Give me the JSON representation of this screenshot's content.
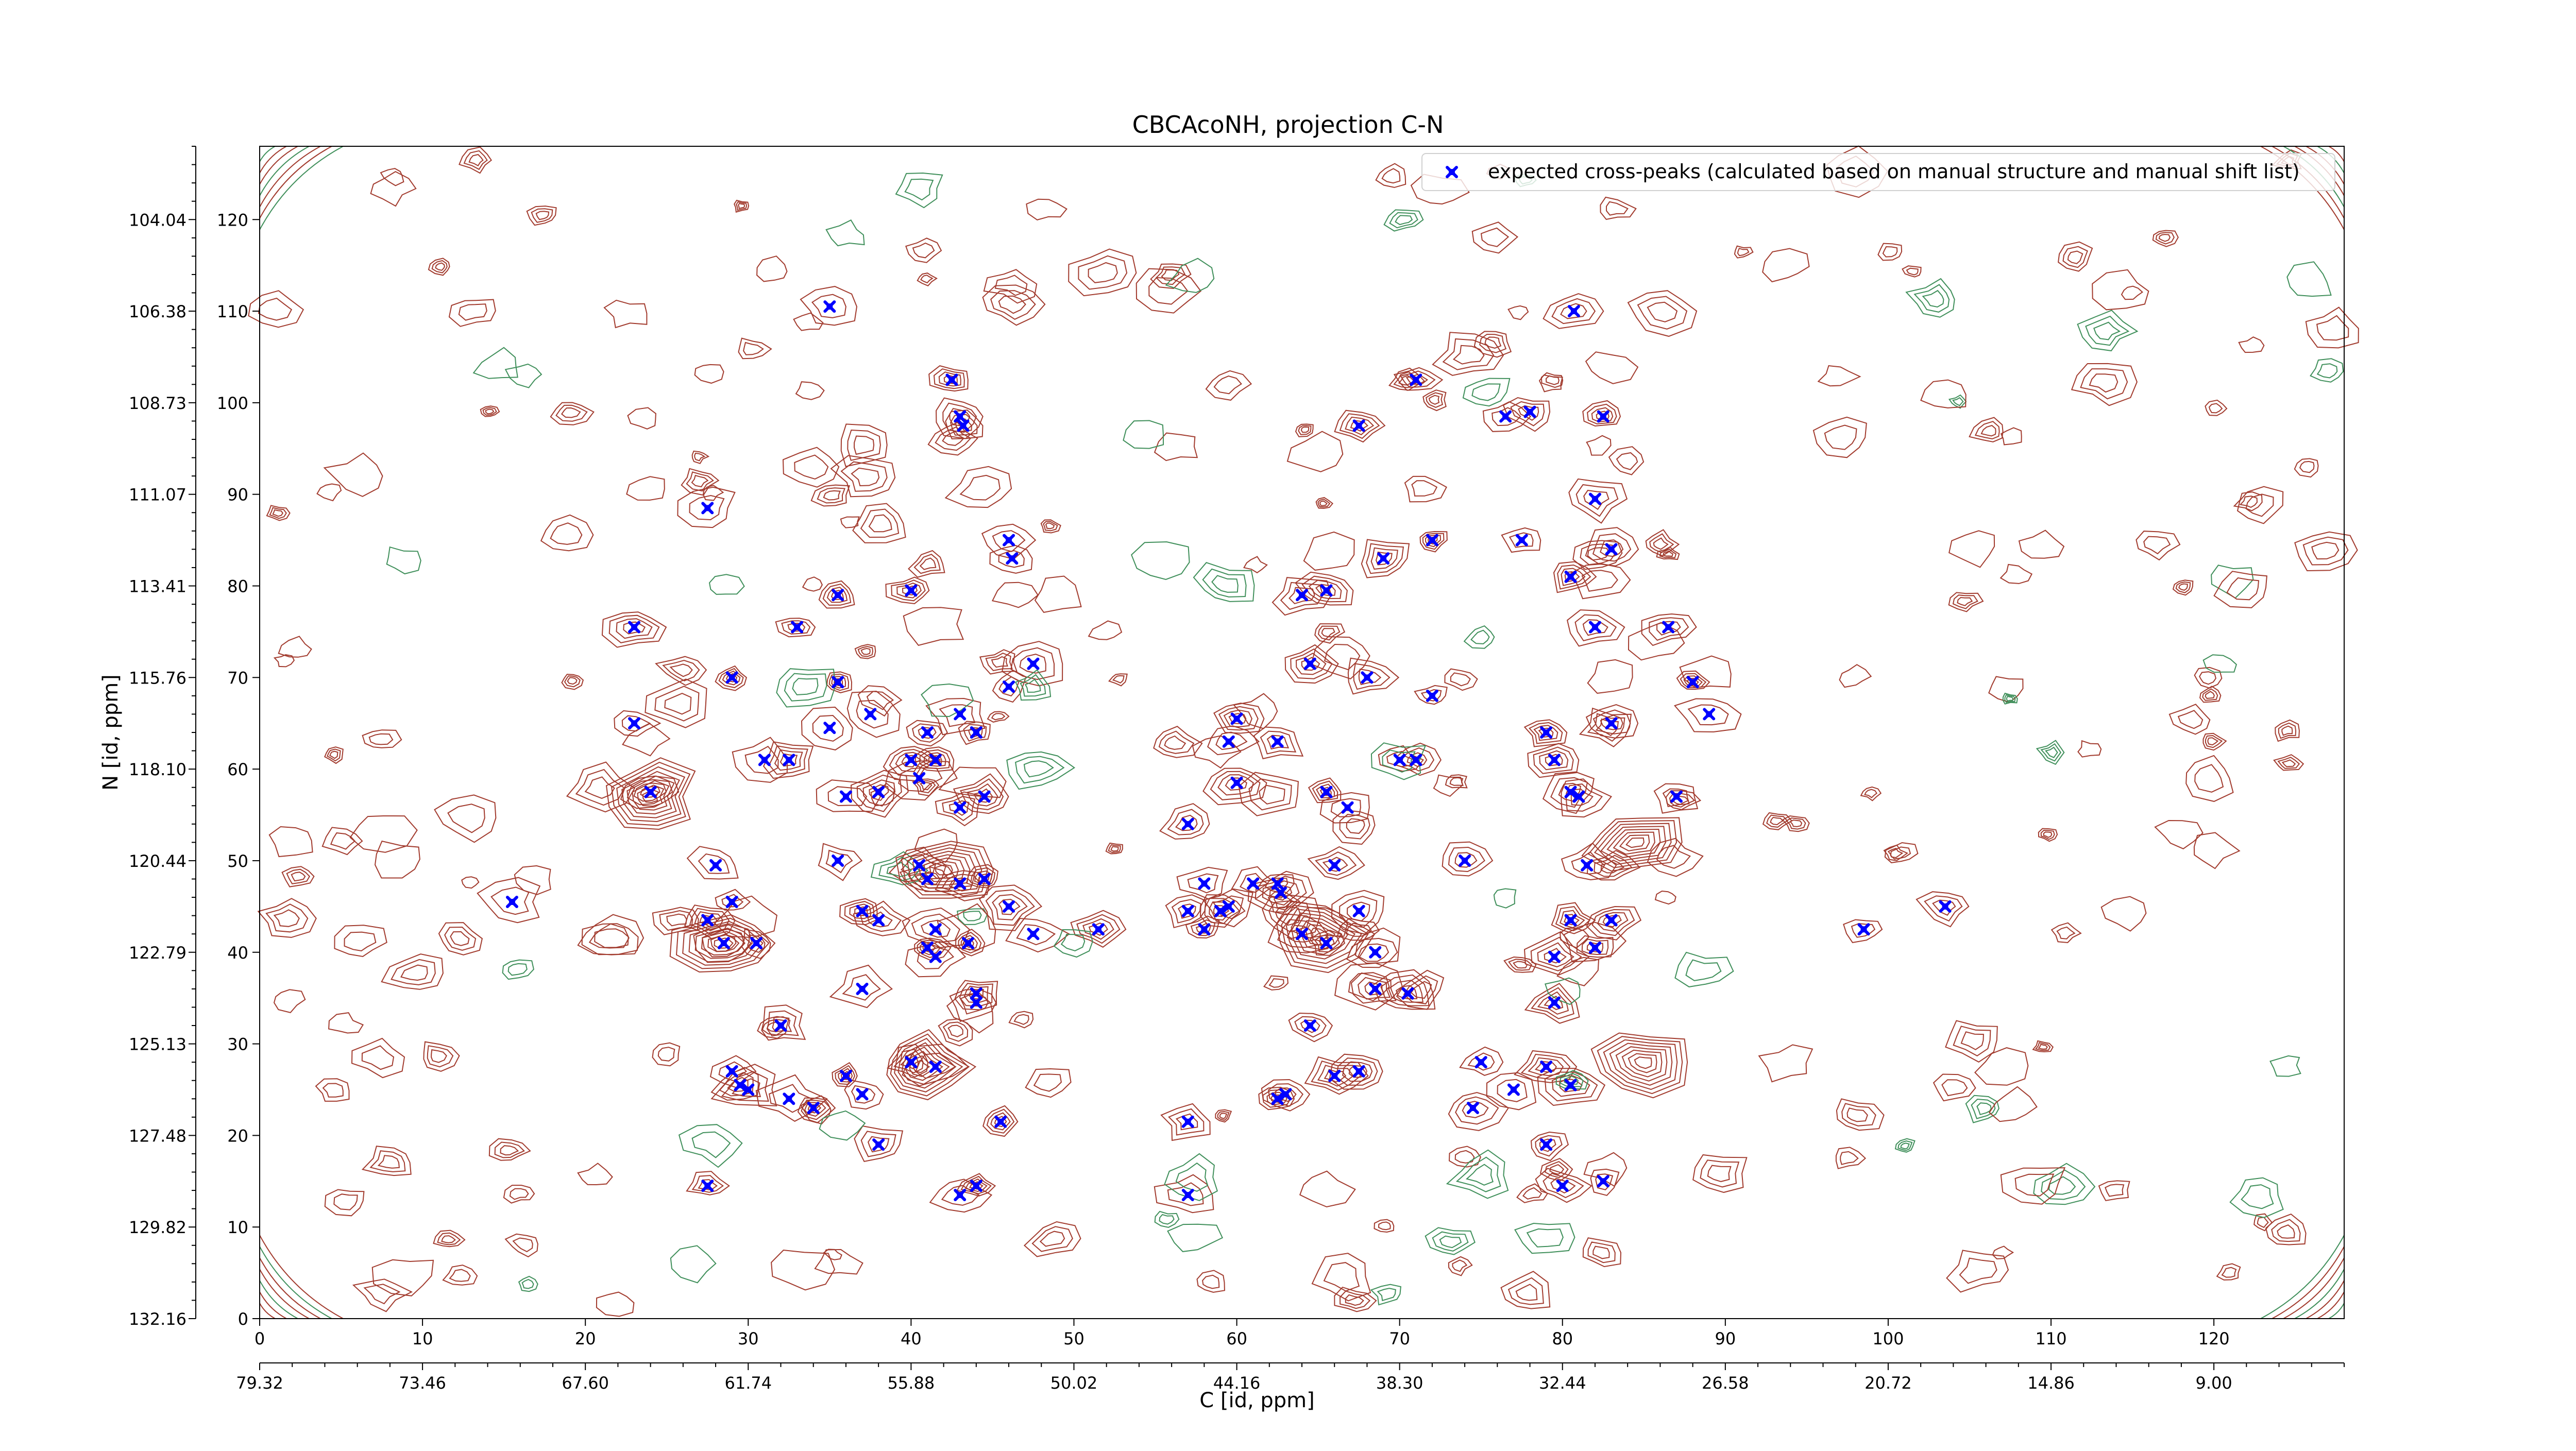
{
  "chart_data": {
    "type": "scatter",
    "title": "CBCAcoNH, projection C-N",
    "xlabel": "C [id, ppm]",
    "ylabel": "N [id, ppm]",
    "xlim": [
      0,
      128
    ],
    "ylim": [
      0,
      128
    ],
    "grid": false,
    "legend_position": "top-right",
    "x_ticks_index": [
      "0",
      "10",
      "20",
      "30",
      "40",
      "50",
      "60",
      "70",
      "80",
      "90",
      "100",
      "110",
      "120"
    ],
    "x_ticks_ppm": [
      "79.32",
      "73.46",
      "67.60",
      "61.74",
      "55.88",
      "50.02",
      "44.16",
      "38.30",
      "32.44",
      "26.58",
      "20.72",
      "14.86",
      "9.00"
    ],
    "y_ticks_index": [
      "0",
      "10",
      "20",
      "30",
      "40",
      "50",
      "60",
      "70",
      "80",
      "90",
      "100",
      "110",
      "120"
    ],
    "y_ticks_ppm": [
      "132.16",
      "129.82",
      "127.48",
      "125.13",
      "122.79",
      "120.44",
      "118.10",
      "115.76",
      "113.41",
      "111.07",
      "108.73",
      "106.38",
      "104.04"
    ],
    "colors": {
      "marker": "#0000ff",
      "contour_positive": "#a23b2e",
      "contour_negative": "#3f8f5a",
      "axis": "#000000"
    },
    "series": [
      {
        "name": "expected cross-peaks (calculated based on manual structure and manual shift list)",
        "marker": "x",
        "points": [
          [
            35,
            110.5
          ],
          [
            42.5,
            102.5
          ],
          [
            43,
            98.5
          ],
          [
            43.2,
            97.5
          ],
          [
            67.5,
            97.5
          ],
          [
            71,
            102.5
          ],
          [
            76.5,
            98.5
          ],
          [
            78,
            99
          ],
          [
            80.7,
            110
          ],
          [
            82,
            89.5
          ],
          [
            82.5,
            98.5
          ],
          [
            27.5,
            88.5
          ],
          [
            46,
            85
          ],
          [
            46.2,
            83
          ],
          [
            72,
            85
          ],
          [
            69,
            83
          ],
          [
            77.5,
            85
          ],
          [
            80.5,
            81
          ],
          [
            83,
            84
          ],
          [
            40,
            79.5
          ],
          [
            35.5,
            79
          ],
          [
            64,
            79
          ],
          [
            65.5,
            79.5
          ],
          [
            23,
            75.5
          ],
          [
            33,
            75.5
          ],
          [
            82,
            75.5
          ],
          [
            86.5,
            75.5
          ],
          [
            47.5,
            71.5
          ],
          [
            46,
            69
          ],
          [
            64.5,
            71.5
          ],
          [
            68,
            70
          ],
          [
            29,
            70
          ],
          [
            35.5,
            69.5
          ],
          [
            72,
            68
          ],
          [
            88,
            69.5
          ],
          [
            23,
            65
          ],
          [
            37.5,
            66
          ],
          [
            35,
            64.5
          ],
          [
            60,
            65.5
          ],
          [
            83,
            65
          ],
          [
            89,
            66
          ],
          [
            43,
            66
          ],
          [
            41,
            64
          ],
          [
            44,
            64
          ],
          [
            59.5,
            63
          ],
          [
            62.5,
            63
          ],
          [
            79,
            64
          ],
          [
            79.5,
            61
          ],
          [
            31,
            61
          ],
          [
            32.5,
            61
          ],
          [
            40,
            61
          ],
          [
            41.5,
            61
          ],
          [
            70,
            61
          ],
          [
            71,
            61
          ],
          [
            40.5,
            59
          ],
          [
            24,
            57.5
          ],
          [
            38,
            57.5
          ],
          [
            36,
            57
          ],
          [
            43,
            55.8
          ],
          [
            44.5,
            57
          ],
          [
            60,
            58.5
          ],
          [
            65.5,
            57.5
          ],
          [
            80.5,
            57.5
          ],
          [
            81,
            57
          ],
          [
            87,
            57
          ],
          [
            66.8,
            55.8
          ],
          [
            57,
            54
          ],
          [
            35.5,
            50
          ],
          [
            40.5,
            49.5
          ],
          [
            41,
            48
          ],
          [
            43,
            47.5
          ],
          [
            44.5,
            48
          ],
          [
            28,
            49.5
          ],
          [
            29,
            45.5
          ],
          [
            58,
            47.5
          ],
          [
            61,
            47.5
          ],
          [
            62.5,
            47.5
          ],
          [
            62.7,
            46.5
          ],
          [
            66,
            49.5
          ],
          [
            74,
            50
          ],
          [
            81.5,
            49.5
          ],
          [
            15.5,
            45.5
          ],
          [
            27.5,
            43.5
          ],
          [
            37,
            44.5
          ],
          [
            38,
            43.5
          ],
          [
            46,
            45
          ],
          [
            57,
            44.5
          ],
          [
            59,
            44.5
          ],
          [
            59.5,
            45
          ],
          [
            67.5,
            44.5
          ],
          [
            103.5,
            45
          ],
          [
            28.5,
            41
          ],
          [
            30.5,
            41
          ],
          [
            41.5,
            42.5
          ],
          [
            43.5,
            41
          ],
          [
            47.5,
            42
          ],
          [
            51.5,
            42.5
          ],
          [
            58,
            42.5
          ],
          [
            64,
            42
          ],
          [
            65.5,
            41
          ],
          [
            68.5,
            40
          ],
          [
            80.5,
            43.5
          ],
          [
            83,
            43.5
          ],
          [
            98.5,
            42.5
          ],
          [
            41,
            40.5
          ],
          [
            41.5,
            39.5
          ],
          [
            79.5,
            39.5
          ],
          [
            82,
            40.5
          ],
          [
            37,
            36
          ],
          [
            68.5,
            36
          ],
          [
            44,
            35.5
          ],
          [
            70.5,
            35.5
          ],
          [
            44,
            34.5
          ],
          [
            79.5,
            34.5
          ],
          [
            32,
            32
          ],
          [
            64.5,
            32
          ],
          [
            40,
            28
          ],
          [
            41.5,
            27.5
          ],
          [
            75,
            28
          ],
          [
            79,
            27.5
          ],
          [
            29,
            27
          ],
          [
            29.5,
            25.5
          ],
          [
            30,
            25
          ],
          [
            36,
            26.5
          ],
          [
            66,
            26.5
          ],
          [
            67.5,
            27
          ],
          [
            77,
            25
          ],
          [
            80.5,
            25.5
          ],
          [
            32.5,
            24
          ],
          [
            34,
            23
          ],
          [
            37,
            24.5
          ],
          [
            62.5,
            24
          ],
          [
            63,
            24.5
          ],
          [
            74.5,
            23
          ],
          [
            45.5,
            21.5
          ],
          [
            57,
            21.5
          ],
          [
            38,
            19
          ],
          [
            79,
            19
          ],
          [
            27.5,
            14.5
          ],
          [
            43,
            13.5
          ],
          [
            44,
            14.5
          ],
          [
            57,
            13.5
          ],
          [
            80,
            14.5
          ],
          [
            82.5,
            15
          ]
        ]
      }
    ]
  }
}
